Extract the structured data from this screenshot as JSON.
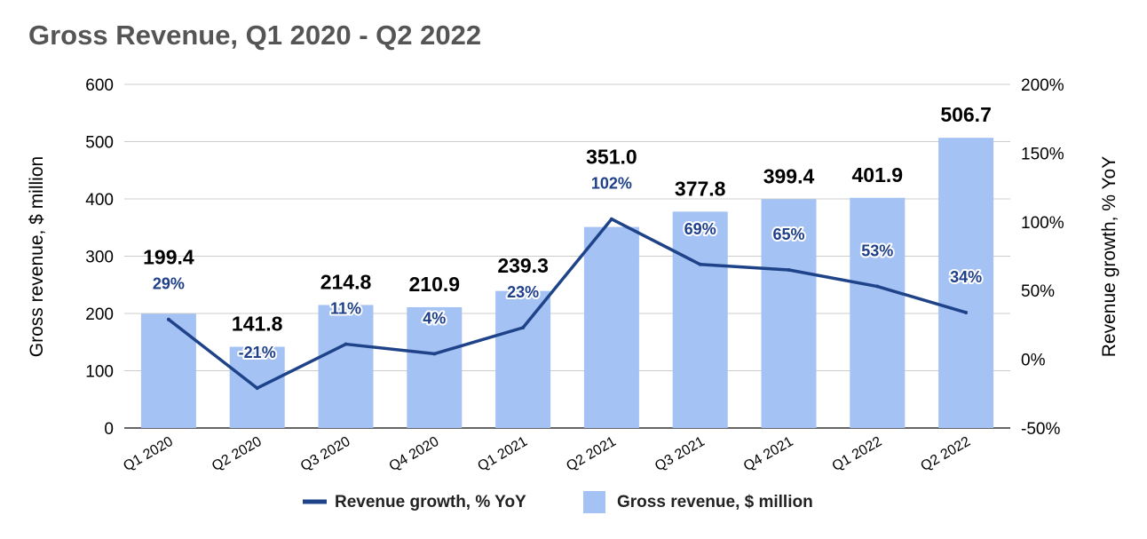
{
  "chart_data": {
    "type": "bar",
    "title": "Gross Revenue, Q1 2020 - Q2 2022",
    "categories": [
      "Q1 2020",
      "Q2 2020",
      "Q3 2020",
      "Q4 2020",
      "Q1 2021",
      "Q2 2021",
      "Q3 2021",
      "Q4 2021",
      "Q1 2022",
      "Q2 2022"
    ],
    "series": [
      {
        "name": "Gross revenue, $ million",
        "type": "bar",
        "axis": "left",
        "values": [
          199.4,
          141.8,
          214.8,
          210.9,
          239.3,
          351.0,
          377.8,
          399.4,
          401.9,
          506.7
        ],
        "labels": [
          "199.4",
          "141.8",
          "214.8",
          "210.9",
          "239.3",
          "351.0",
          "377.8",
          "399.4",
          "401.9",
          "506.7"
        ],
        "color": "#a4c2f4"
      },
      {
        "name": "Revenue growth, % YoY",
        "type": "line",
        "axis": "right",
        "values": [
          29,
          -21,
          11,
          4,
          23,
          102,
          69,
          65,
          53,
          34
        ],
        "labels": [
          "29%",
          "-21%",
          "11%",
          "4%",
          "23%",
          "102%",
          "69%",
          "65%",
          "53%",
          "34%"
        ],
        "color": "#1f4389"
      }
    ],
    "ylabel": "Gross revenue, $ million",
    "ylim": [
      0,
      600
    ],
    "yticks": [
      "0",
      "100",
      "200",
      "300",
      "400",
      "500",
      "600"
    ],
    "y2label": "Revenue growth, % YoY",
    "y2lim": [
      -50,
      200
    ],
    "y2ticks": [
      "-50%",
      "0%",
      "50%",
      "100%",
      "150%",
      "200%"
    ],
    "grid": true,
    "legend": "bottom"
  }
}
